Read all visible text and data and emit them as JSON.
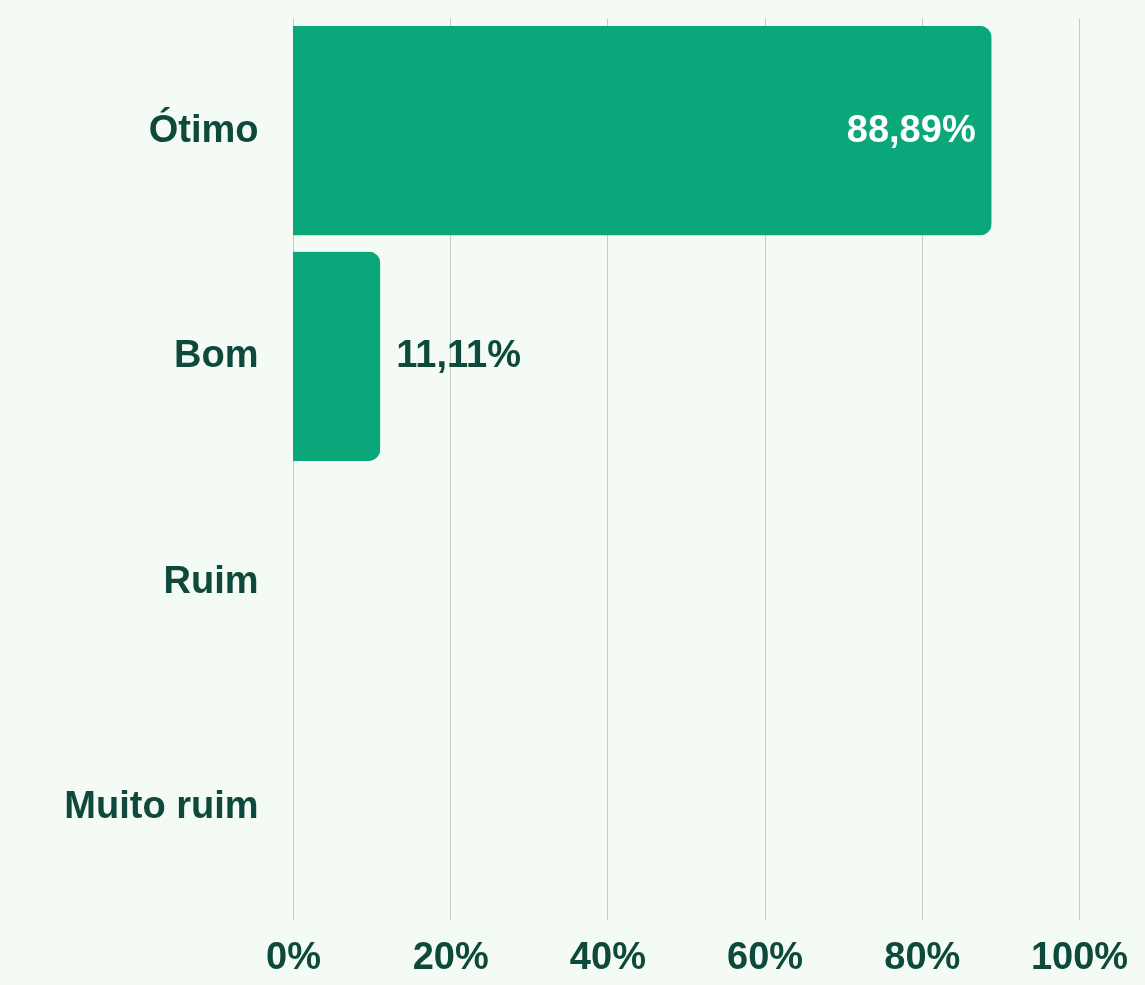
{
  "chart_data": {
    "type": "bar",
    "orientation": "horizontal",
    "categories": [
      "Ótimo",
      "Bom",
      "Ruim",
      "Muito ruim"
    ],
    "values": [
      88.89,
      11.11,
      0,
      0
    ],
    "value_labels": [
      "88,89%",
      "11,11%",
      null,
      null
    ],
    "color": "#0aa77a",
    "xlim": [
      0,
      100
    ],
    "xticks": [
      {
        "value": 0,
        "label": "0%"
      },
      {
        "value": 20,
        "label": "20%"
      },
      {
        "value": 40,
        "label": "40%"
      },
      {
        "value": 60,
        "label": "60%"
      },
      {
        "value": 80,
        "label": "80%"
      },
      {
        "value": 100,
        "label": "100%"
      }
    ],
    "grid": "x"
  }
}
